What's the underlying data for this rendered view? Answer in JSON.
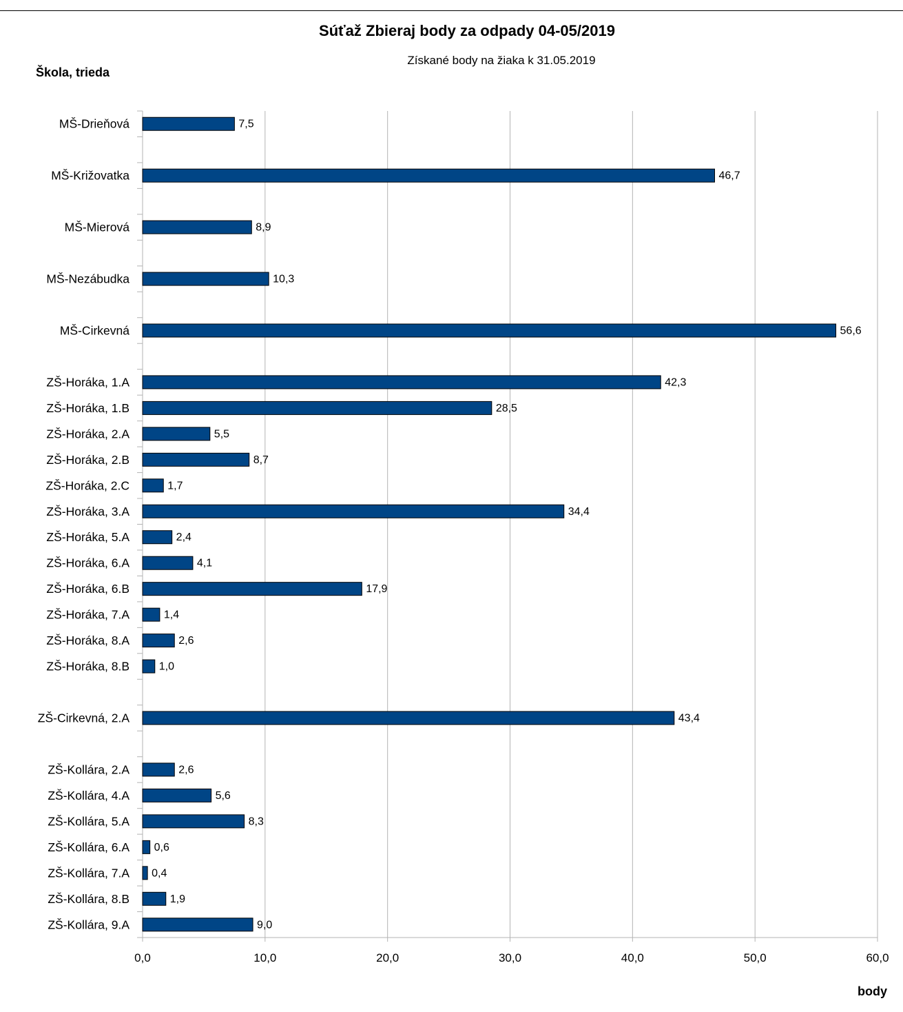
{
  "chart_data": {
    "type": "bar",
    "orientation": "horizontal",
    "title": "Súťaž Zbieraj body za odpady 04-05/2019",
    "subtitle": "Získané body na žiaka k  31.05.2019",
    "ylabel": "Škola, trieda",
    "xlabel": "body",
    "xlim": [
      0,
      60
    ],
    "x_ticks": [
      "0,0",
      "10,0",
      "20,0",
      "30,0",
      "40,0",
      "50,0",
      "60,0"
    ],
    "grid": true,
    "legend": "none",
    "bar_color": "#004586",
    "categories": [
      "MŠ-Drieňová",
      "",
      "MŠ-Križovatka",
      "",
      "MŠ-Mierová",
      "",
      "MŠ-Nezábudka",
      "",
      "MŠ-Cirkevná",
      "",
      "ZŠ-Horáka, 1.A",
      "ZŠ-Horáka, 1.B",
      "ZŠ-Horáka, 2.A",
      "ZŠ-Horáka, 2.B",
      "ZŠ-Horáka, 2.C",
      "ZŠ-Horáka, 3.A",
      "ZŠ-Horáka, 5.A",
      "ZŠ-Horáka, 6.A",
      "ZŠ-Horáka, 6.B",
      "ZŠ-Horáka, 7.A",
      "ZŠ-Horáka, 8.A",
      "ZŠ-Horáka, 8.B",
      "",
      "ZŠ-Cirkevná, 2.A",
      "",
      "ZŠ-Kollára, 2.A",
      "ZŠ-Kollára, 4.A",
      "ZŠ-Kollára, 5.A",
      "ZŠ-Kollára, 6.A",
      "ZŠ-Kollára, 7.A",
      "ZŠ-Kollára, 8.B",
      "ZŠ-Kollára, 9.A"
    ],
    "values": [
      7.5,
      null,
      46.7,
      null,
      8.9,
      null,
      10.3,
      null,
      56.6,
      null,
      42.3,
      28.5,
      5.5,
      8.7,
      1.7,
      34.4,
      2.4,
      4.1,
      17.9,
      1.4,
      2.6,
      1.0,
      null,
      43.4,
      null,
      2.6,
      5.6,
      8.3,
      0.6,
      0.4,
      1.9,
      9.0
    ],
    "value_labels": [
      "7,5",
      "",
      "46,7",
      "",
      "8,9",
      "",
      "10,3",
      "",
      "56,6",
      "",
      "42,3",
      "28,5",
      "5,5",
      "8,7",
      "1,7",
      "34,4",
      "2,4",
      "4,1",
      "17,9",
      "1,4",
      "2,6",
      "1,0",
      "",
      "43,4",
      "",
      "2,6",
      "5,6",
      "8,3",
      "0,6",
      "0,4",
      "1,9",
      "9,0"
    ]
  }
}
